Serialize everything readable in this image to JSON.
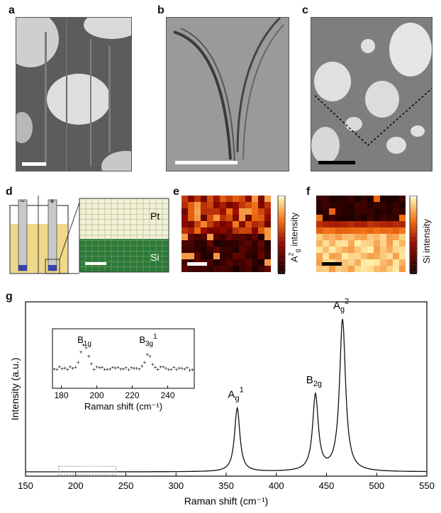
{
  "panels": {
    "a": {
      "letter": "a"
    },
    "b": {
      "letter": "b"
    },
    "c": {
      "letter": "c"
    },
    "d": {
      "letter": "d",
      "label_top": "Pt",
      "label_bottom": "Si",
      "minus": "−",
      "plus": "+"
    },
    "e": {
      "letter": "e",
      "colorbar_label": "A",
      "colorbar_sup": "2",
      "colorbar_sub": "g",
      "colorbar_rest": " intensity"
    },
    "f": {
      "letter": "f",
      "colorbar_label": "Si intensity"
    },
    "g": {
      "letter": "g"
    }
  },
  "colors": {
    "heat_dark": "#1a0000",
    "heat_mid": "#cc2a00",
    "heat_bright": "#ffe89a",
    "grid_green": "#2a7a3a",
    "grid_cream": "#f1f1d8",
    "electrolyte": "#efd889",
    "electrode_blue": "#3344aa"
  },
  "chart_data": {
    "type": "line",
    "xlabel": "Raman shift (cm⁻¹)",
    "ylabel": "Intensity (a.u.)",
    "xlim": [
      150,
      550
    ],
    "xticks": [
      150,
      200,
      250,
      300,
      350,
      400,
      450,
      500,
      550
    ],
    "peaks": [
      {
        "center": 361,
        "height": 0.42,
        "width": 3.2,
        "label": "A",
        "sub": "g",
        "sup": "1"
      },
      {
        "center": 439,
        "height": 0.5,
        "width": 3.4,
        "label": "B",
        "sub": "2g",
        "sup": ""
      },
      {
        "center": 466,
        "height": 1.0,
        "width": 3.6,
        "label": "A",
        "sub": "g",
        "sup": "2"
      }
    ],
    "inset": {
      "xlabel": "Raman shift (cm⁻¹)",
      "xlim": [
        175,
        255
      ],
      "xticks": [
        180,
        200,
        220,
        240
      ],
      "labels": [
        {
          "x": 193,
          "label": "B",
          "sub": "1g",
          "sup": ""
        },
        {
          "x": 229,
          "label": "B",
          "sub": "3g",
          "sup": "1"
        }
      ]
    }
  }
}
